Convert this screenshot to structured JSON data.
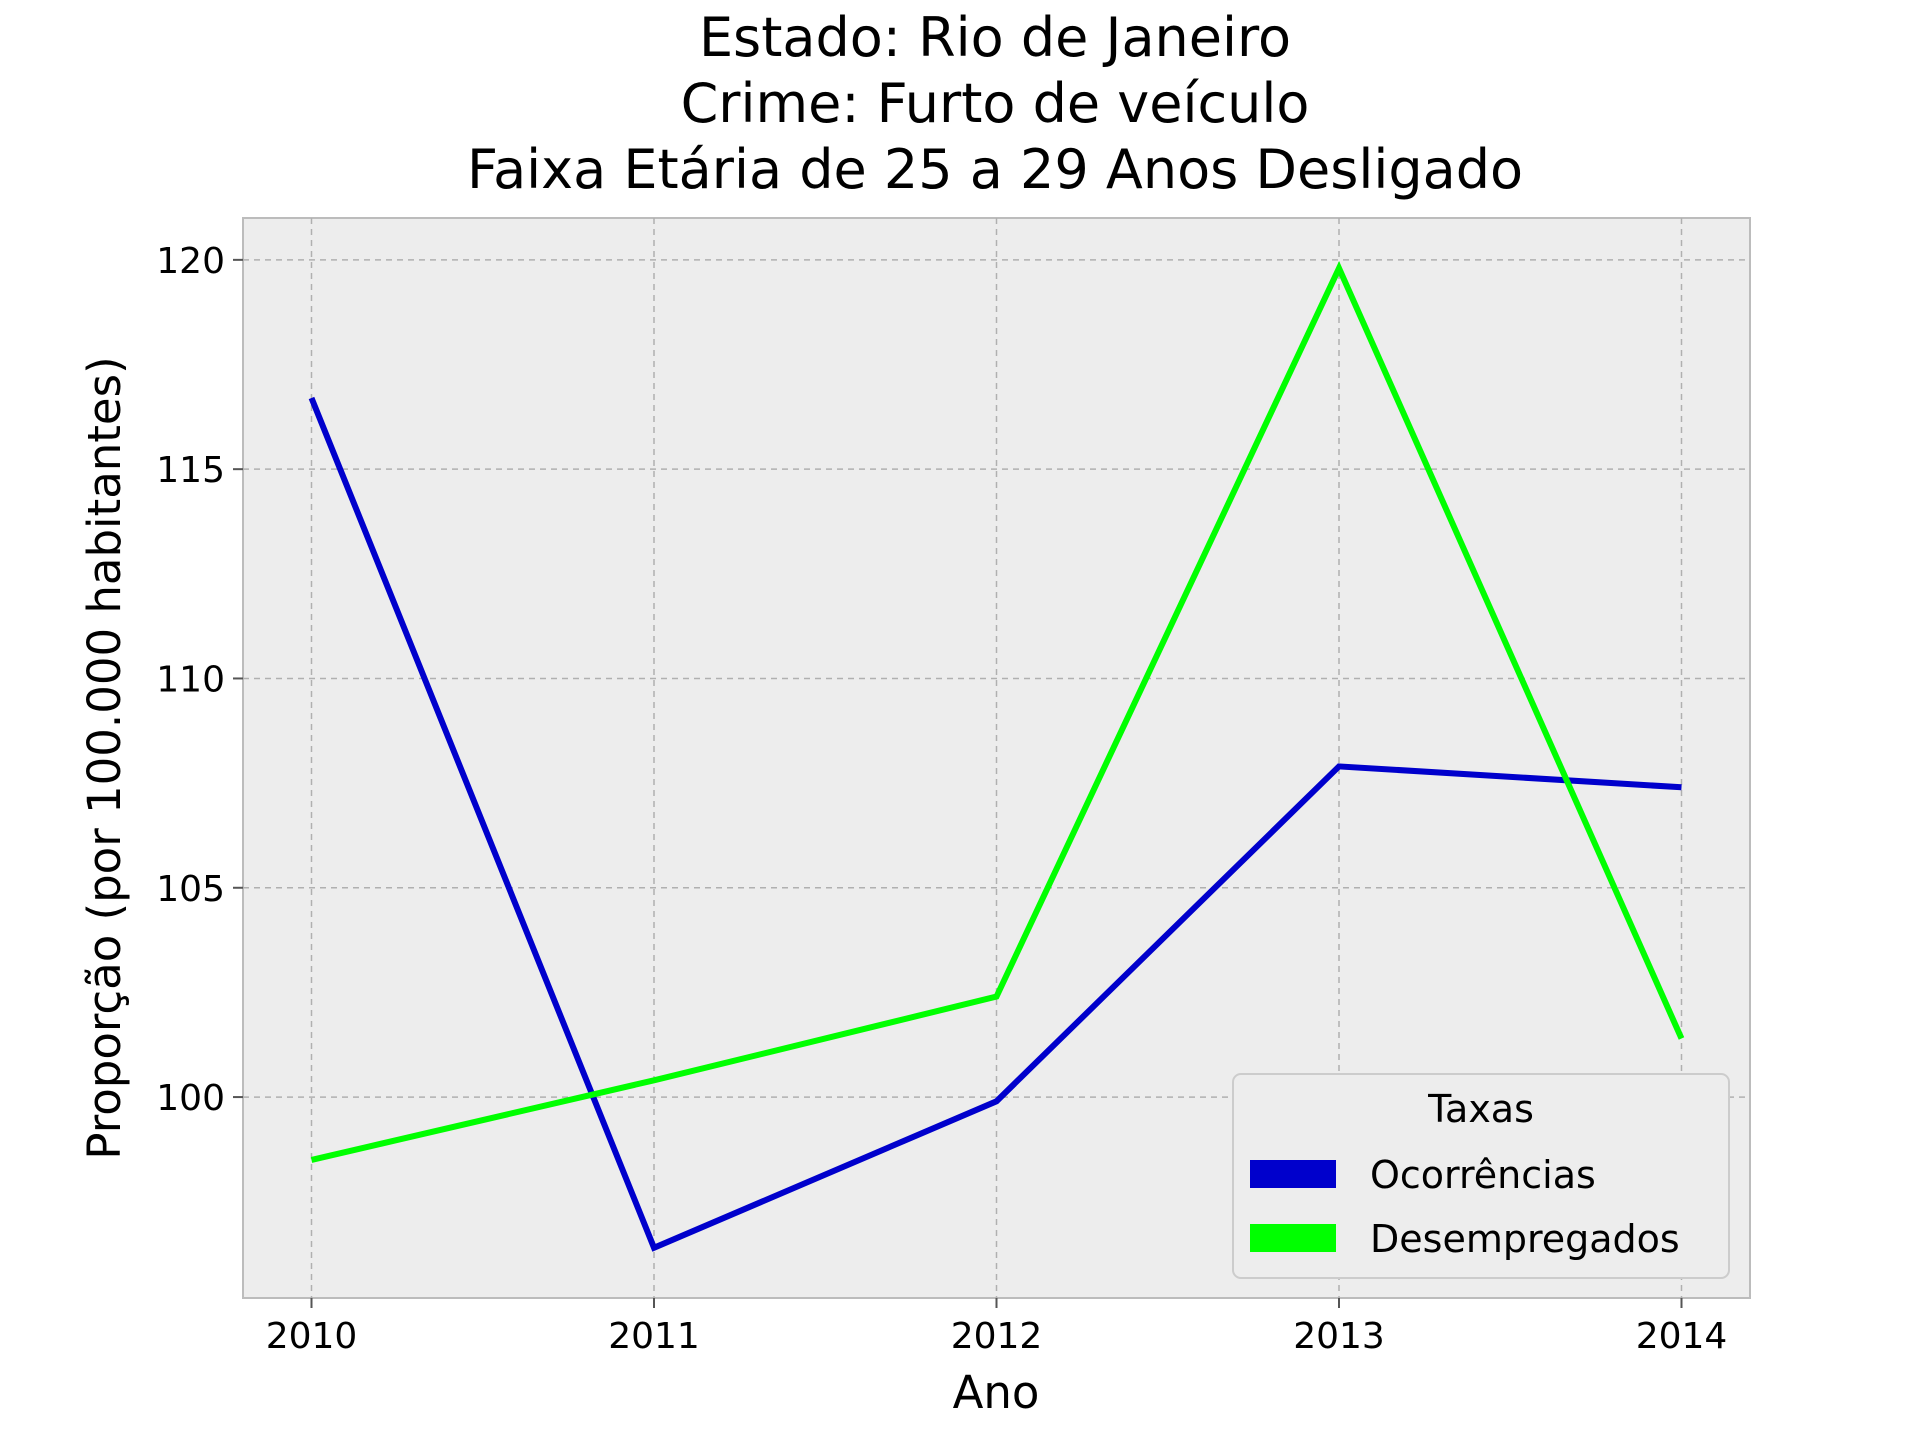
{
  "chart_data": {
    "type": "line",
    "title_lines": [
      "Estado: Rio de Janeiro",
      "Crime: Furto de veículo",
      "Faixa Etária de 25 a 29 Anos   Desligado"
    ],
    "xlabel": "Ano",
    "ylabel": "Proporção (por 100.000 habitantes)",
    "x": [
      2010,
      2011,
      2012,
      2013,
      2014
    ],
    "x_tick_labels": [
      "2010",
      "2011",
      "2012",
      "2013",
      "2014"
    ],
    "xlim": [
      2009.8,
      2014.2
    ],
    "ylim": [
      95.2,
      121.0
    ],
    "y_ticks": [
      100,
      105,
      110,
      115,
      120
    ],
    "y_tick_labels": [
      "100",
      "105",
      "110",
      "115",
      "120"
    ],
    "grid": true,
    "legend": {
      "title": "Taxas",
      "placement": "lower-right"
    },
    "series": [
      {
        "name": "Ocorrências",
        "color": "#0000cc",
        "values": [
          116.7,
          96.4,
          99.9,
          107.9,
          107.4
        ]
      },
      {
        "name": "Desempregados",
        "color": "#00ff00",
        "values": [
          98.5,
          100.4,
          102.4,
          119.8,
          101.4
        ]
      }
    ]
  }
}
